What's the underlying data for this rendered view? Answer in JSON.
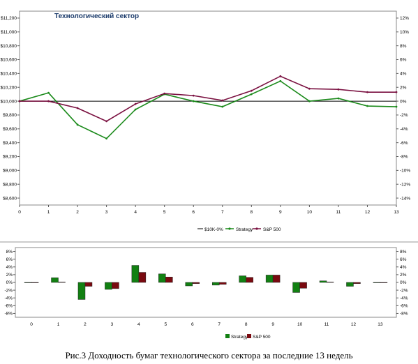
{
  "chart_data": [
    {
      "type": "line",
      "title": "Технологический сектор",
      "x": [
        0,
        1,
        2,
        3,
        4,
        5,
        6,
        7,
        8,
        9,
        10,
        11,
        12,
        13
      ],
      "left_axis": {
        "ticks": [
          "$8,600",
          "$8,800",
          "$9,000",
          "$9,200",
          "$9,400",
          "$9,600",
          "$9,800",
          "$10,000",
          "$10,200",
          "$10,400",
          "$10,600",
          "$10,800",
          "$11,000",
          "$11,200"
        ],
        "ylim": [
          8500,
          11300
        ]
      },
      "right_axis": {
        "ticks": [
          "-14%",
          "-12%",
          "-10%",
          "-8%",
          "-6%",
          "-4%",
          "-2%",
          "0%",
          "2%",
          "4%",
          "6%",
          "8%",
          "10%",
          "12%"
        ]
      },
      "grid": false,
      "legend_position": "bottom",
      "series": [
        {
          "name": "$10K-0%",
          "color": "#000000",
          "values": [
            10000,
            10000,
            10000,
            10000,
            10000,
            10000,
            10000,
            10000,
            10000,
            10000,
            10000,
            10000,
            10000,
            10000
          ]
        },
        {
          "name": "Strategy",
          "color": "#1a8a1a",
          "values": [
            10000,
            10120,
            9660,
            9460,
            9880,
            10100,
            10000,
            9920,
            10100,
            10290,
            10000,
            10040,
            9930,
            9920
          ]
        },
        {
          "name": "S&P 500",
          "color": "#7a1040",
          "values": [
            10000,
            10000,
            9900,
            9710,
            9960,
            10110,
            10080,
            10010,
            10150,
            10360,
            10180,
            10170,
            10130,
            10130
          ]
        }
      ]
    },
    {
      "type": "bar",
      "categories": [
        "0",
        "1",
        "2",
        "3",
        "4",
        "5",
        "6",
        "7",
        "8",
        "9",
        "10",
        "11",
        "12",
        "13"
      ],
      "y_ticks": [
        "-8%",
        "-6%",
        "-4%",
        "-2%",
        "0%",
        "2%",
        "4%",
        "6%",
        "8%"
      ],
      "ylim": [
        -9,
        9
      ],
      "grid": false,
      "legend_position": "bottom",
      "series": [
        {
          "name": "Strategy",
          "color": "#128012",
          "values": [
            0,
            1.2,
            -4.4,
            -1.8,
            4.4,
            2.2,
            -0.9,
            -0.7,
            1.7,
            1.9,
            -2.6,
            0.4,
            -1.0,
            -0.1
          ]
        },
        {
          "name": "S&P 500",
          "color": "#7a0a10",
          "values": [
            0,
            0.1,
            -1.0,
            -1.6,
            2.6,
            1.4,
            -0.3,
            -0.5,
            1.3,
            1.9,
            -1.5,
            0.1,
            -0.3,
            0.0
          ]
        }
      ]
    }
  ],
  "caption": "Рис.3 Доходность бумаг технологического сектора за последние 13 недель"
}
